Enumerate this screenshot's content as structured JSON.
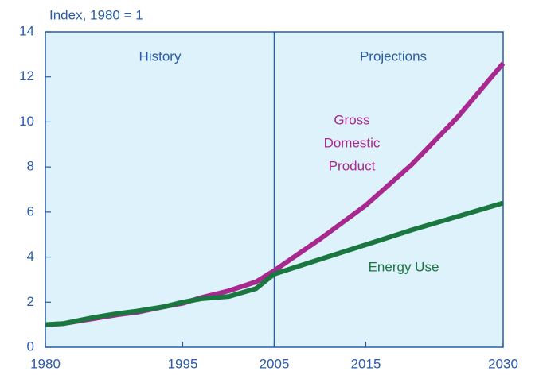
{
  "chart_data": {
    "type": "line",
    "y_label": "Index, 1980 = 1",
    "x": [
      1980,
      1982,
      1985,
      1988,
      1990,
      1993,
      1995,
      1997,
      2000,
      2003,
      2005,
      2010,
      2015,
      2020,
      2025,
      2030
    ],
    "series": [
      {
        "name": "Gross Domestic Product",
        "color": "#a8288f",
        "values": [
          1,
          1.05,
          1.25,
          1.45,
          1.55,
          1.8,
          1.95,
          2.2,
          2.5,
          2.9,
          3.4,
          4.8,
          6.3,
          8.1,
          10.2,
          12.6
        ]
      },
      {
        "name": "Energy Use",
        "color": "#19773f",
        "values": [
          1,
          1.05,
          1.3,
          1.5,
          1.6,
          1.8,
          2.0,
          2.15,
          2.25,
          2.6,
          3.25,
          3.9,
          4.55,
          5.2,
          5.8,
          6.4
        ]
      }
    ],
    "annotations": [
      "History",
      "Projections"
    ],
    "series_labels": [
      [
        "Gross",
        "Domestic",
        "Product"
      ],
      [
        "Energy Use"
      ]
    ],
    "divider": 2005,
    "xlim": [
      1980,
      2030
    ],
    "xticks": [
      1980,
      1995,
      2005,
      2015,
      2030
    ],
    "ylim": [
      0,
      14
    ],
    "yticks": [
      0,
      2,
      4,
      6,
      8,
      10,
      12,
      14
    ],
    "background": "#ddf2fa"
  }
}
